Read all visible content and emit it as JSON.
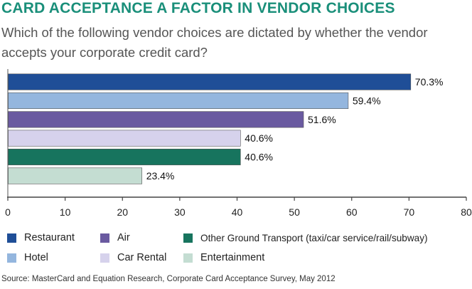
{
  "header": {
    "title": "CARD ACCEPTANCE A FACTOR IN VENDOR CHOICES",
    "subtitle": "Which of the following vendor choices are dictated by whether the vendor accepts your corporate credit card?"
  },
  "chart_data": {
    "type": "bar",
    "orientation": "horizontal",
    "categories": [
      "Restaurant",
      "Hotel",
      "Air",
      "Car Rental",
      "Other Ground Transport (taxi/car service/rail/subway)",
      "Entertainment"
    ],
    "values": [
      70.3,
      59.4,
      51.6,
      40.6,
      40.6,
      23.4
    ],
    "value_labels": [
      "70.3%",
      "59.4%",
      "51.6%",
      "40.6%",
      "40.6%",
      "23.4%"
    ],
    "colors": [
      "#1f4e97",
      "#94b6de",
      "#6a5aa0",
      "#d6d2ec",
      "#17745e",
      "#c4ddd2"
    ],
    "xlim": [
      0,
      80
    ],
    "xticks": [
      0,
      10,
      20,
      30,
      40,
      50,
      60,
      70,
      80
    ],
    "grid": false,
    "legend_position": "bottom"
  },
  "legend": [
    {
      "label": "Restaurant",
      "color": "#1f4e97"
    },
    {
      "label": "Hotel",
      "color": "#94b6de"
    },
    {
      "label": "Air",
      "color": "#6a5aa0"
    },
    {
      "label": "Car Rental",
      "color": "#d6d2ec"
    },
    {
      "label": "Other Ground Transport (taxi/car service/rail/subway)",
      "color": "#17745e"
    },
    {
      "label": "Entertainment",
      "color": "#c4ddd2"
    }
  ],
  "footer": {
    "source": "Source: MasterCard and Equation Research, Corporate Card Acceptance Survey, May 2012"
  }
}
